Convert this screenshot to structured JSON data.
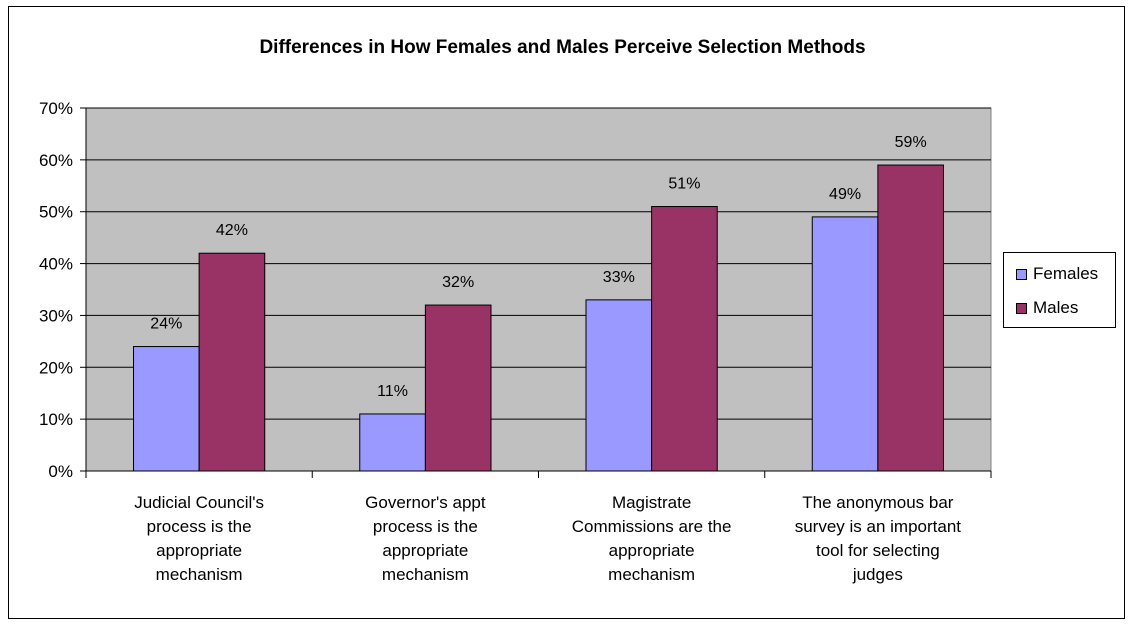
{
  "chart_data": {
    "type": "bar",
    "title": "Differences in How Females and Males Perceive Selection Methods",
    "categories": [
      [
        "Judicial Council's",
        "process is the",
        "appropriate",
        "mechanism"
      ],
      [
        "Governor's appt",
        "process is the",
        "appropriate",
        "mechanism"
      ],
      [
        "Magistrate",
        "Commissions are the",
        "appropriate",
        "mechanism"
      ],
      [
        "The anonymous bar",
        "survey is an important",
        "tool for selecting",
        "judges"
      ]
    ],
    "series": [
      {
        "name": "Females",
        "values": [
          24,
          11,
          33,
          49
        ],
        "labels": [
          "24%",
          "11%",
          "33%",
          "49%"
        ],
        "color": "#9999FF"
      },
      {
        "name": "Males",
        "values": [
          42,
          32,
          51,
          59
        ],
        "labels": [
          "42%",
          "32%",
          "51%",
          "59%"
        ],
        "color": "#993366"
      }
    ],
    "ylim": [
      0,
      70
    ],
    "yticks": [
      "0%",
      "10%",
      "20%",
      "30%",
      "40%",
      "50%",
      "60%",
      "70%"
    ],
    "plot_background": "#C0C0C0",
    "grid": true,
    "legend_position": "right"
  }
}
